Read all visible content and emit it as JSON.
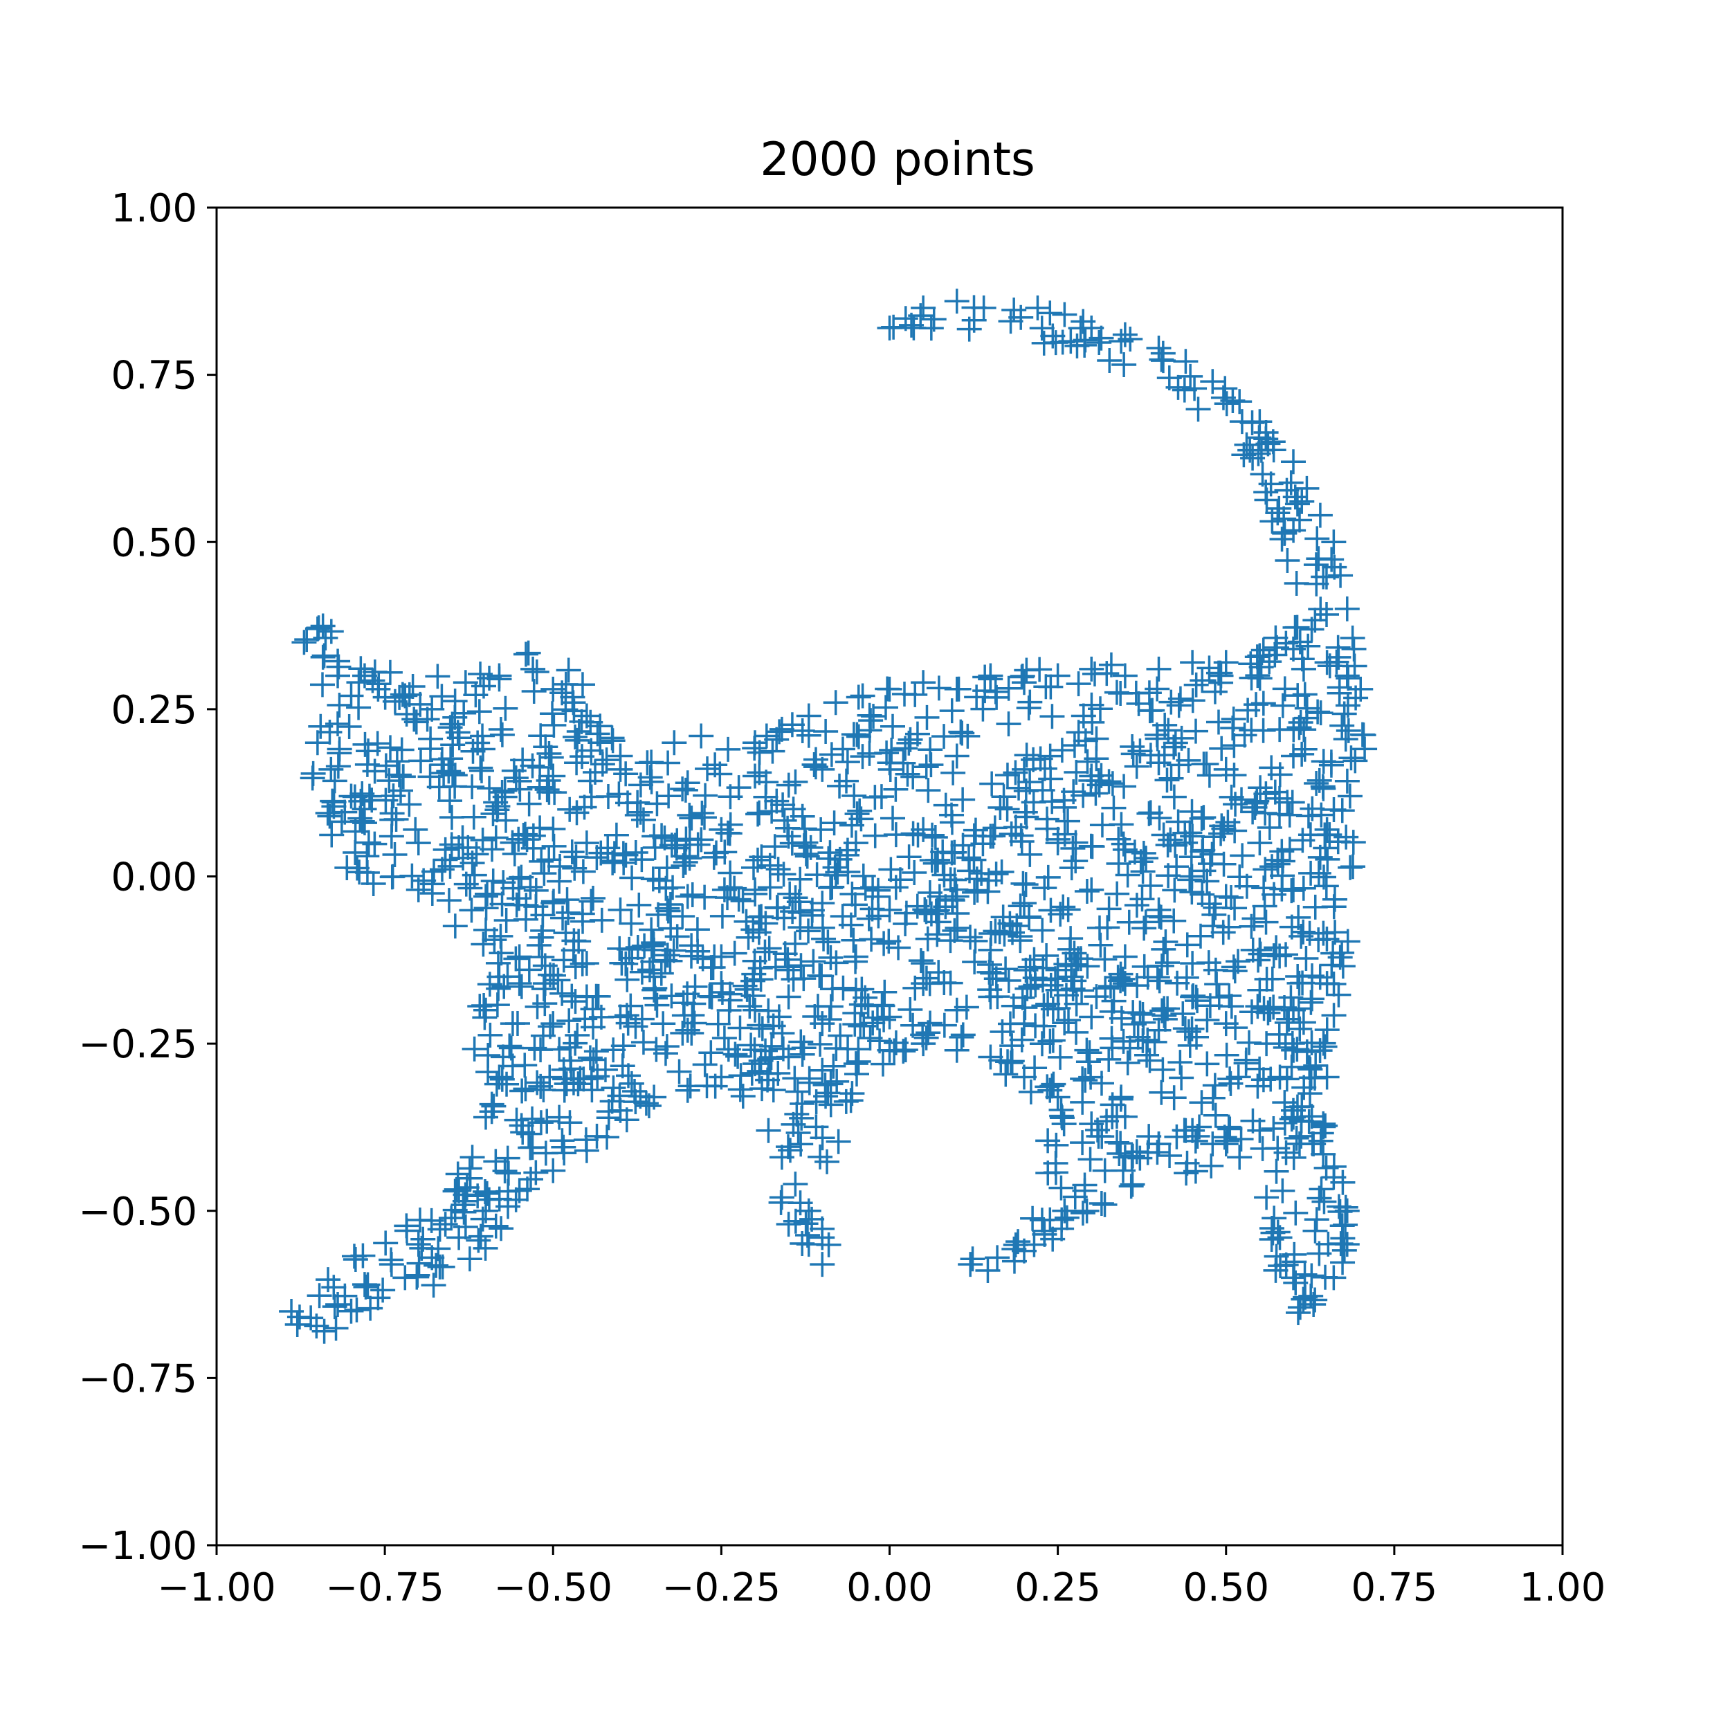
{
  "chart_data": {
    "type": "scatter",
    "title": "2000 points",
    "xlabel": "",
    "ylabel": "",
    "xlim": [
      -1.0,
      1.0
    ],
    "ylim": [
      -1.0,
      1.0
    ],
    "xticks": [
      "−1.00",
      "−0.75",
      "−0.50",
      "−0.25",
      "0.00",
      "0.25",
      "0.50",
      "0.75",
      "1.00"
    ],
    "yticks": [
      "1.00",
      "0.75",
      "0.50",
      "0.25",
      "0.00",
      "−0.25",
      "−0.50",
      "−0.75",
      "−1.00"
    ],
    "grid": false,
    "legend": "none",
    "marker": "+",
    "color": "#1f77b4",
    "point_count": 2000,
    "series": [
      {
        "x": [
          0.0,
          0.05,
          0.1,
          0.14,
          0.18,
          0.22,
          0.26,
          0.3,
          0.35,
          0.4,
          0.44,
          0.48,
          0.52,
          0.55,
          0.57,
          0.6,
          0.62,
          0.64,
          0.66,
          0.67,
          0.68,
          0.69,
          0.7,
          -0.87,
          -0.85,
          -0.84,
          -0.82,
          -0.8,
          -0.78,
          -0.85,
          -0.83,
          -0.8,
          -0.76,
          -0.72,
          -0.68,
          -0.63,
          -0.58,
          -0.53,
          -0.5,
          -0.47,
          -0.45,
          -0.43,
          -0.4,
          -0.36,
          -0.32,
          -0.28,
          -0.24,
          -0.2,
          -0.16,
          -0.12,
          -0.08,
          -0.04,
          0.0,
          0.05,
          0.1,
          0.15,
          0.2,
          0.25,
          0.3,
          0.35,
          0.4,
          0.45,
          0.5,
          0.55,
          0.6,
          0.65,
          0.68,
          -0.78,
          -0.74,
          -0.7,
          -0.66,
          -0.62,
          -0.6,
          -0.58,
          -0.56,
          -0.58,
          -0.6,
          -0.62,
          -0.64,
          -0.66,
          -0.7,
          -0.74,
          -0.78,
          -0.82,
          -0.86,
          -0.88,
          -0.84,
          -0.8,
          -0.76,
          -0.72,
          -0.68,
          -0.64,
          -0.6,
          -0.55,
          -0.5,
          -0.45,
          -0.42,
          -0.4,
          -0.35,
          -0.3,
          -0.25,
          -0.2,
          -0.15,
          -0.1,
          -0.05,
          0.0,
          0.05,
          0.1,
          0.15,
          0.2,
          0.25,
          0.3,
          0.35,
          0.4,
          0.45,
          0.5,
          0.55,
          0.6,
          0.65,
          -0.18,
          -0.16,
          -0.14,
          -0.12,
          -0.1,
          -0.1,
          -0.12,
          -0.15,
          -0.16,
          0.12,
          0.16,
          0.2,
          0.23,
          0.26,
          0.29,
          0.32,
          0.36,
          0.4,
          0.44,
          0.48,
          0.52,
          0.56,
          0.58,
          0.6,
          0.63,
          0.66,
          0.68,
          0.68,
          0.66,
          0.63,
          0.6,
          0.58,
          0.56,
          -0.5,
          -0.4,
          -0.3,
          -0.2,
          -0.1,
          0.0,
          0.1,
          0.2,
          0.3,
          0.4,
          0.5,
          0.6,
          -0.45,
          -0.35,
          -0.25,
          -0.15,
          -0.05,
          0.05,
          0.15,
          0.25,
          0.35,
          0.45,
          0.55,
          0.65,
          -0.7,
          -0.6,
          -0.5,
          -0.4,
          -0.3,
          -0.2,
          -0.1,
          0.0,
          0.1,
          0.2,
          0.3,
          0.4,
          0.5,
          0.6,
          -0.55,
          -0.45,
          -0.35,
          -0.25,
          -0.15,
          -0.05,
          0.05,
          0.15,
          0.25,
          0.35,
          0.45,
          0.55,
          -0.6,
          -0.5,
          -0.4,
          -0.3,
          -0.2,
          -0.1,
          0.0,
          0.1,
          0.2,
          0.3,
          0.4,
          0.5,
          0.6,
          -0.55,
          -0.45,
          -0.35,
          -0.25,
          -0.15,
          -0.05,
          0.05,
          0.15,
          0.25,
          0.35,
          0.45,
          0.55,
          0.65
        ],
        "y": [
          0.82,
          0.85,
          0.86,
          0.85,
          0.83,
          0.85,
          0.84,
          0.82,
          0.81,
          0.79,
          0.77,
          0.74,
          0.71,
          0.68,
          0.65,
          0.62,
          0.58,
          0.54,
          0.5,
          0.45,
          0.4,
          0.34,
          0.28,
          0.35,
          0.37,
          0.33,
          0.3,
          0.27,
          0.3,
          0.2,
          0.16,
          0.12,
          0.28,
          0.27,
          0.25,
          0.29,
          0.3,
          0.31,
          0.28,
          0.26,
          0.24,
          0.2,
          0.18,
          0.17,
          0.2,
          0.21,
          0.19,
          0.2,
          0.22,
          0.24,
          0.26,
          0.27,
          0.28,
          0.29,
          0.28,
          0.3,
          0.29,
          0.3,
          0.31,
          0.3,
          0.31,
          0.32,
          0.32,
          0.33,
          0.34,
          0.32,
          0.3,
          0.08,
          0.06,
          0.05,
          0.04,
          0.02,
          -0.08,
          -0.15,
          -0.22,
          -0.3,
          -0.36,
          -0.42,
          -0.47,
          -0.52,
          -0.55,
          -0.58,
          -0.61,
          -0.64,
          -0.66,
          -0.67,
          -0.68,
          -0.65,
          -0.63,
          -0.6,
          -0.57,
          -0.54,
          -0.5,
          -0.47,
          -0.44,
          -0.41,
          -0.39,
          -0.35,
          -0.33,
          -0.32,
          -0.3,
          -0.28,
          -0.27,
          -0.29,
          -0.28,
          -0.26,
          -0.25,
          -0.26,
          -0.27,
          -0.3,
          -0.33,
          -0.37,
          -0.42,
          -0.4,
          -0.38,
          -0.4,
          -0.38,
          -0.36,
          -0.3,
          -0.38,
          -0.42,
          -0.46,
          -0.5,
          -0.54,
          -0.58,
          -0.55,
          -0.52,
          -0.48,
          -0.58,
          -0.57,
          -0.56,
          -0.53,
          -0.5,
          -0.47,
          -0.44,
          -0.42,
          -0.4,
          -0.38,
          -0.4,
          -0.42,
          -0.48,
          -0.54,
          -0.6,
          -0.64,
          -0.6,
          -0.55,
          -0.5,
          -0.45,
          -0.4,
          -0.35,
          -0.3,
          -0.25,
          0.15,
          0.16,
          0.14,
          0.15,
          0.16,
          0.17,
          0.18,
          0.16,
          0.15,
          0.17,
          0.16,
          0.18,
          0.05,
          0.06,
          0.07,
          0.06,
          0.05,
          0.07,
          0.06,
          0.05,
          0.04,
          0.06,
          0.05,
          0.07,
          -0.02,
          -0.03,
          -0.04,
          -0.05,
          -0.03,
          -0.02,
          -0.04,
          -0.05,
          -0.03,
          -0.04,
          -0.02,
          -0.05,
          -0.03,
          -0.02,
          -0.12,
          -0.13,
          -0.11,
          -0.12,
          -0.14,
          -0.12,
          -0.13,
          -0.11,
          -0.14,
          -0.12,
          -0.13,
          -0.11,
          -0.2,
          -0.22,
          -0.21,
          -0.23,
          -0.2,
          -0.22,
          -0.21,
          -0.2,
          -0.22,
          -0.21,
          -0.23,
          -0.22,
          -0.2,
          -0.16,
          -0.18,
          -0.17,
          -0.16,
          -0.18,
          -0.17,
          -0.16,
          -0.18,
          -0.17,
          -0.16,
          -0.18,
          -0.17,
          -0.16
        ]
      }
    ]
  }
}
